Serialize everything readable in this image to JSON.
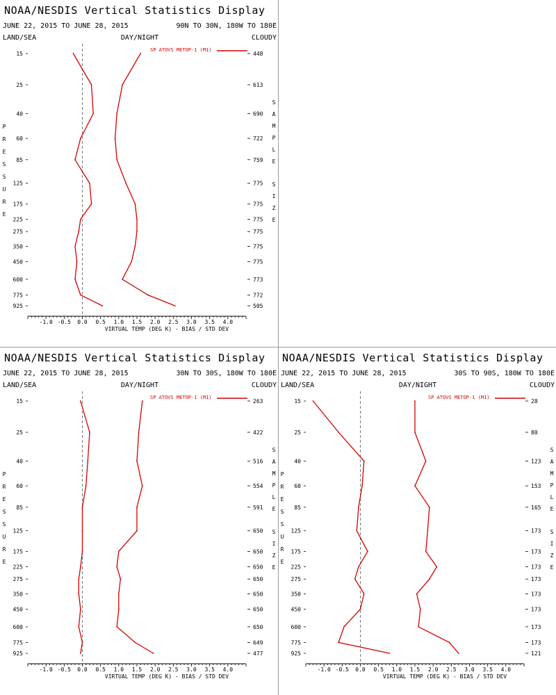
{
  "colors": {
    "series": "#d40000",
    "axis": "#000000",
    "zero_line": "#555555"
  },
  "chart_data": [
    {
      "type": "line",
      "title": "NOAA/NESDIS Vertical Statistics Display",
      "date_range": "JUNE 22, 2015 TO JUNE 28, 2015",
      "region": "90N TO 30N, 180W TO 180E",
      "header_left": "LAND/SEA",
      "header_center": "DAY/NIGHT",
      "header_right": "CLOUDY",
      "ylabel": "PRESSURE",
      "ylabel_right": "SAMPLE SIZE",
      "xlabel": "VIRTUAL TEMP (DEG K) - BIAS / STD DEV",
      "xlim": [
        -1.5,
        4.5
      ],
      "x_ticks": [
        "-1.0",
        "-0.5",
        "0.0",
        "0.5",
        "1.0",
        "1.5",
        "2.0",
        "2.5",
        "3.0",
        "3.5",
        "4.0"
      ],
      "y_scale": "log",
      "pressure_levels": [
        15,
        25,
        40,
        60,
        85,
        125,
        175,
        225,
        275,
        350,
        450,
        600,
        775,
        925
      ],
      "sample_size": [
        448,
        613,
        690,
        722,
        759,
        775,
        775,
        775,
        775,
        775,
        775,
        773,
        772,
        505
      ],
      "legend": "SP ATOVS METOP-1 (M1)",
      "series": [
        {
          "name": "BIAS",
          "values": [
            -0.25,
            0.25,
            0.3,
            -0.05,
            -0.2,
            0.2,
            0.25,
            -0.05,
            -0.1,
            -0.2,
            -0.15,
            -0.2,
            -0.05,
            0.55
          ]
        },
        {
          "name": "STD DEV",
          "values": [
            1.6,
            1.1,
            0.95,
            0.9,
            0.95,
            1.2,
            1.45,
            1.5,
            1.5,
            1.45,
            1.35,
            1.1,
            1.8,
            2.55
          ]
        }
      ]
    },
    {
      "type": "line",
      "title": "NOAA/NESDIS Vertical Statistics Display",
      "date_range": "JUNE 22, 2015 TO JUNE 28, 2015",
      "region": "30N TO 30S, 180W TO 180E",
      "header_left": "LAND/SEA",
      "header_center": "DAY/NIGHT",
      "header_right": "CLOUDY",
      "ylabel": "PRESSURE",
      "ylabel_right": "SAMPLE SIZE",
      "xlabel": "VIRTUAL TEMP (DEG K) - BIAS / STD DEV",
      "xlim": [
        -1.5,
        4.5
      ],
      "x_ticks": [
        "-1.0",
        "-0.5",
        "0.0",
        "0.5",
        "1.0",
        "1.5",
        "2.0",
        "2.5",
        "3.0",
        "3.5",
        "4.0"
      ],
      "y_scale": "log",
      "pressure_levels": [
        15,
        25,
        40,
        60,
        85,
        125,
        175,
        225,
        275,
        350,
        450,
        600,
        775,
        925
      ],
      "sample_size": [
        263,
        422,
        516,
        554,
        591,
        650,
        650,
        650,
        650,
        650,
        650,
        650,
        649,
        477
      ],
      "legend": "SP ATOVS METOP-1 (M1)",
      "series": [
        {
          "name": "BIAS",
          "values": [
            -0.05,
            0.2,
            0.15,
            0.1,
            0.0,
            0.0,
            0.0,
            -0.05,
            -0.1,
            -0.1,
            -0.05,
            -0.1,
            0.0,
            -0.05
          ]
        },
        {
          "name": "STD DEV",
          "values": [
            1.65,
            1.55,
            1.5,
            1.65,
            1.5,
            1.5,
            1.0,
            0.95,
            1.05,
            1.0,
            1.0,
            0.95,
            1.45,
            1.95
          ]
        }
      ]
    },
    {
      "type": "line",
      "title": "NOAA/NESDIS Vertical Statistics Display",
      "date_range": "JUNE 22, 2015 TO JUNE 28, 2015",
      "region": "30S TO 90S, 180W TO 180E",
      "header_left": "LAND/SEA",
      "header_center": "DAY/NIGHT",
      "header_right": "CLOUDY",
      "ylabel": "PRESSURE",
      "ylabel_right": "SAMPLE SIZE",
      "xlabel": "VIRTUAL TEMP (DEG K) - BIAS / STD DEV",
      "xlim": [
        -1.5,
        4.5
      ],
      "x_ticks": [
        "-1.0",
        "-0.5",
        "0.0",
        "0.5",
        "1.0",
        "1.5",
        "2.0",
        "2.5",
        "3.0",
        "3.5",
        "4.0"
      ],
      "y_scale": "log",
      "pressure_levels": [
        15,
        25,
        40,
        60,
        85,
        125,
        175,
        225,
        275,
        350,
        450,
        600,
        775,
        925
      ],
      "sample_size": [
        28,
        80,
        123,
        153,
        165,
        173,
        173,
        173,
        173,
        173,
        173,
        173,
        173,
        121
      ],
      "legend": "SP ATOVS METOP-1 (M1)",
      "series": [
        {
          "name": "BIAS",
          "values": [
            -1.3,
            -0.6,
            0.1,
            0.05,
            -0.05,
            -0.1,
            0.2,
            -0.05,
            -0.15,
            0.1,
            0.0,
            -0.45,
            -0.6,
            0.8
          ]
        },
        {
          "name": "STD DEV",
          "values": [
            1.5,
            1.5,
            1.8,
            1.5,
            1.9,
            1.85,
            1.8,
            2.1,
            1.9,
            1.55,
            1.65,
            1.6,
            2.45,
            2.7
          ]
        }
      ]
    }
  ]
}
